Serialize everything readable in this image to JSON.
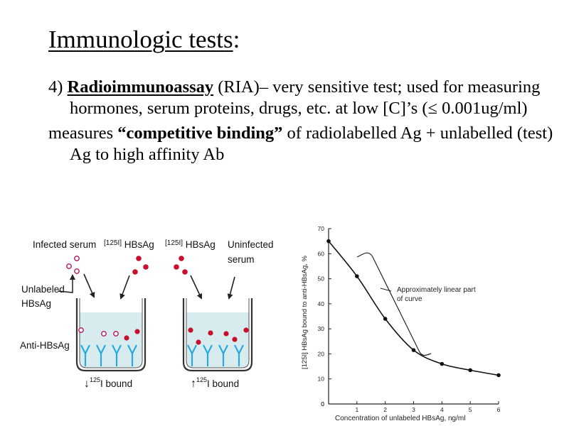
{
  "slide": {
    "title_main": "Immunologic tests",
    "title_colon": ":",
    "p1_num": "4) ",
    "p1_term": "Radioimmunoassay",
    "p1_rest": " (RIA)– very sensitive test; used for measuring hormones, serum proteins, drugs, etc. at low [C]’s (≤ 0.001ug/ml)",
    "p2_start": "measures ",
    "p2_bold": "“competitive binding”",
    "p2_rest": " of radiolabelled Ag + unlabelled (test) Ag to high affinity Ab"
  },
  "diagram": {
    "infected_serum": "Infected serum",
    "labeled_1_sup": "[125I]",
    "labeled_1_rest": " HBsAg",
    "labeled_2_sup": "[125I]",
    "labeled_2_rest": " HBsAg",
    "uninfected_1": "Uninfected",
    "uninfected_2": "serum",
    "unlabeled_1": "Unlabeled",
    "unlabeled_2": "HBsAg",
    "anti": "Anti-HBsAg",
    "bound_left_arrow": "↓",
    "bound_left_sup": "125",
    "bound_left_text": "I bound",
    "bound_right_arrow": "↑",
    "bound_right_sup": "125",
    "bound_right_text": "I bound",
    "colors": {
      "labeled": "#c8102e",
      "unlabeled": "#b5246e",
      "antibody": "#29a9e0",
      "fluid": "#d8ecef"
    }
  },
  "chart_data": {
    "type": "line",
    "x": [
      0,
      1,
      2,
      3,
      4,
      5,
      6
    ],
    "y": [
      65,
      51,
      34,
      21.5,
      16,
      13.5,
      11.5
    ],
    "xlabel": "Concentration of unlabeled HBsAg, ng/ml",
    "ylabel": "[125I] HBsAg bound to anti-HBsAg, %",
    "xlim": [
      0,
      6
    ],
    "ylim": [
      0,
      70
    ],
    "xticks": [
      "0",
      "1",
      "2",
      "3",
      "4",
      "5",
      "6"
    ],
    "yticks": [
      "0",
      "10",
      "20",
      "30",
      "40",
      "50",
      "60",
      "70"
    ],
    "annotation_1": "Approximately linear part",
    "annotation_2": "of curve",
    "grid": false,
    "legend": "none"
  }
}
